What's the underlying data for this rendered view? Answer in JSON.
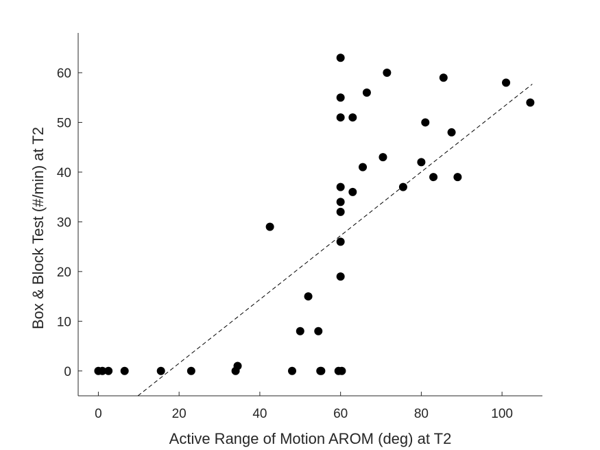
{
  "chart_data": {
    "type": "scatter",
    "xlabel": "Active Range of Motion AROM (deg) at T2",
    "ylabel": "Box & Block Test (#/min) at T2",
    "xlim": [
      -5,
      110
    ],
    "ylim": [
      -5,
      68
    ],
    "xticks": [
      0,
      20,
      40,
      60,
      80,
      100
    ],
    "yticks": [
      0,
      10,
      20,
      30,
      40,
      50,
      60
    ],
    "grid": false,
    "colors": {
      "points": "#000000",
      "axis": "#262626",
      "fit_line": "#000000"
    },
    "points": [
      [
        0,
        0
      ],
      [
        1,
        0
      ],
      [
        2.5,
        0
      ],
      [
        6.5,
        0
      ],
      [
        15.5,
        0
      ],
      [
        23,
        0
      ],
      [
        34,
        0
      ],
      [
        34.5,
        1
      ],
      [
        42.5,
        29
      ],
      [
        48,
        0
      ],
      [
        50,
        8
      ],
      [
        52,
        15
      ],
      [
        54.5,
        8
      ],
      [
        55,
        0
      ],
      [
        55.2,
        0
      ],
      [
        59.5,
        0
      ],
      [
        60.3,
        0
      ],
      [
        60,
        63
      ],
      [
        60,
        55
      ],
      [
        60,
        51
      ],
      [
        60,
        37
      ],
      [
        60,
        34
      ],
      [
        60,
        32
      ],
      [
        60,
        26
      ],
      [
        60,
        19
      ],
      [
        63,
        51
      ],
      [
        63,
        36
      ],
      [
        65.5,
        41
      ],
      [
        66.5,
        56
      ],
      [
        70.5,
        43
      ],
      [
        71.5,
        60
      ],
      [
        75.5,
        37
      ],
      [
        80,
        42
      ],
      [
        81,
        50
      ],
      [
        83,
        39
      ],
      [
        85.5,
        59
      ],
      [
        87.5,
        48
      ],
      [
        89,
        39
      ],
      [
        101,
        58
      ],
      [
        107,
        54
      ]
    ],
    "fit_line": {
      "style": "dashed",
      "x": [
        9.8,
        107.5
      ],
      "y": [
        -5,
        57.7
      ]
    }
  }
}
